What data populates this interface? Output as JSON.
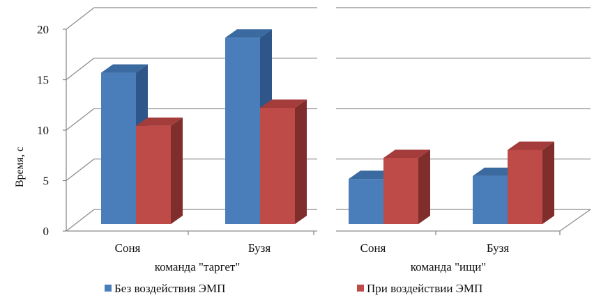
{
  "chart_data": {
    "type": "bar",
    "ylabel": "Время, с",
    "ylim": [
      0,
      20
    ],
    "yticks": [
      "0",
      "5",
      "10",
      "15",
      "20"
    ],
    "grid": true,
    "legend_position": "bottom",
    "groups": [
      {
        "label": "команда \"таргет\"",
        "categories": [
          "Соня",
          "Бузя"
        ],
        "series": [
          {
            "name": "Без воздействия ЭМП",
            "values": [
              15.1,
              18.6
            ]
          },
          {
            "name": "При воздействии ЭМП",
            "values": [
              9.8,
              11.6
            ]
          }
        ]
      },
      {
        "label": "команда \"ищи\"",
        "categories": [
          "Соня",
          "Бузя"
        ],
        "series": [
          {
            "name": "Без воздействия ЭМП",
            "values": [
              4.5,
              4.8
            ]
          },
          {
            "name": "При воздействии ЭМП",
            "values": [
              6.6,
              7.4
            ]
          }
        ]
      }
    ],
    "legend": [
      "Без воздействия ЭМП",
      "При воздействии ЭМП"
    ],
    "colors": {
      "series1": {
        "front": "#4a7ebb",
        "top": "#3a6aa0",
        "side": "#2e5688"
      },
      "series2": {
        "front": "#be4b48",
        "top": "#a33c3a",
        "side": "#7f2e2c"
      }
    }
  }
}
